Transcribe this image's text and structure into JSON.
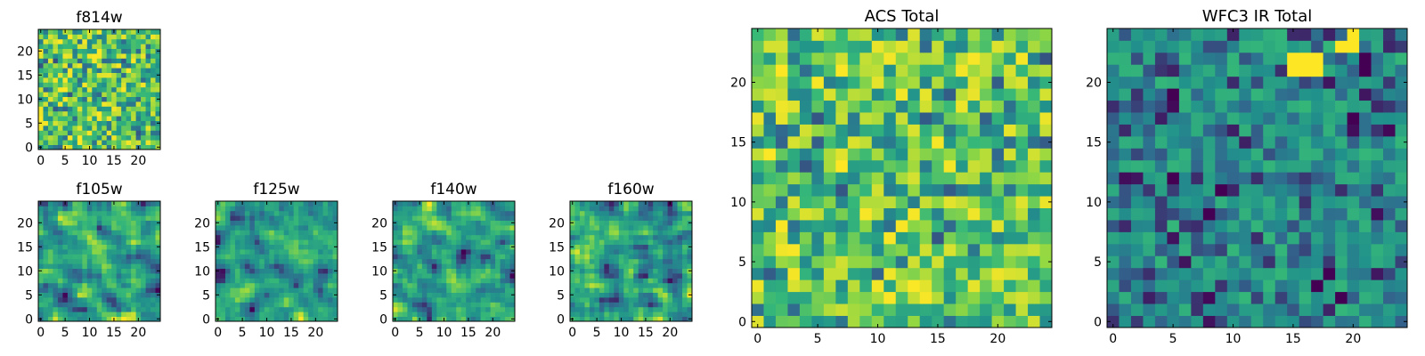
{
  "colormap": "viridis",
  "colors": {
    "viridis": [
      "#440154",
      "#31688e",
      "#21918c",
      "#35b779",
      "#90d743",
      "#fde725"
    ],
    "axes": "#000000",
    "background": "#ffffff"
  },
  "chart_data": [
    {
      "type": "heatmap",
      "title": "f814w",
      "grid_size": 25,
      "seed": 814,
      "smooth": 0,
      "xticks": [
        0,
        5,
        10,
        15,
        20
      ],
      "yticks": [
        0,
        5,
        10,
        15,
        20
      ],
      "xlim": [
        0,
        25
      ],
      "ylim": [
        0,
        25
      ],
      "grid": false
    },
    {
      "type": "heatmap",
      "title": "f105w",
      "grid_size": 25,
      "seed": 105,
      "smooth": 1,
      "xticks": [
        0,
        5,
        10,
        15,
        20
      ],
      "yticks": [
        0,
        5,
        10,
        15,
        20
      ],
      "xlim": [
        0,
        25
      ],
      "ylim": [
        0,
        25
      ],
      "grid": false
    },
    {
      "type": "heatmap",
      "title": "f125w",
      "grid_size": 25,
      "seed": 125,
      "smooth": 1,
      "xticks": [
        0,
        5,
        10,
        15,
        20
      ],
      "yticks": [
        0,
        5,
        10,
        15,
        20
      ],
      "xlim": [
        0,
        25
      ],
      "ylim": [
        0,
        25
      ],
      "grid": false
    },
    {
      "type": "heatmap",
      "title": "f140w",
      "grid_size": 25,
      "seed": 140,
      "smooth": 1,
      "xticks": [
        0,
        5,
        10,
        15,
        20
      ],
      "yticks": [
        0,
        5,
        10,
        15,
        20
      ],
      "xlim": [
        0,
        25
      ],
      "ylim": [
        0,
        25
      ],
      "grid": false
    },
    {
      "type": "heatmap",
      "title": "f160w",
      "grid_size": 25,
      "seed": 160,
      "smooth": 1,
      "xticks": [
        0,
        5,
        10,
        15,
        20
      ],
      "yticks": [
        0,
        5,
        10,
        15,
        20
      ],
      "xlim": [
        0,
        25
      ],
      "ylim": [
        0,
        25
      ],
      "grid": false
    },
    {
      "type": "heatmap",
      "title": "ACS Total",
      "grid_size": 25,
      "seed": 900,
      "smooth": 0,
      "xticks": [
        0,
        5,
        10,
        15,
        20
      ],
      "yticks": [
        0,
        5,
        10,
        15,
        20
      ],
      "xlim": [
        0,
        25
      ],
      "ylim": [
        0,
        25
      ],
      "grid": false
    },
    {
      "type": "heatmap",
      "title": "WFC3 IR Total",
      "grid_size": 25,
      "seed": 333,
      "smooth": 0,
      "bias": -0.35,
      "hotspots": [
        [
          15,
          21
        ],
        [
          16,
          21
        ],
        [
          17,
          21
        ],
        [
          15,
          22
        ],
        [
          16,
          22
        ],
        [
          17,
          22
        ],
        [
          19,
          23
        ],
        [
          20,
          23
        ],
        [
          20,
          24
        ]
      ],
      "xticks": [
        0,
        5,
        10,
        15,
        20
      ],
      "yticks": [
        0,
        5,
        10,
        15,
        20
      ],
      "xlim": [
        0,
        25
      ],
      "ylim": [
        0,
        25
      ],
      "grid": false
    }
  ]
}
